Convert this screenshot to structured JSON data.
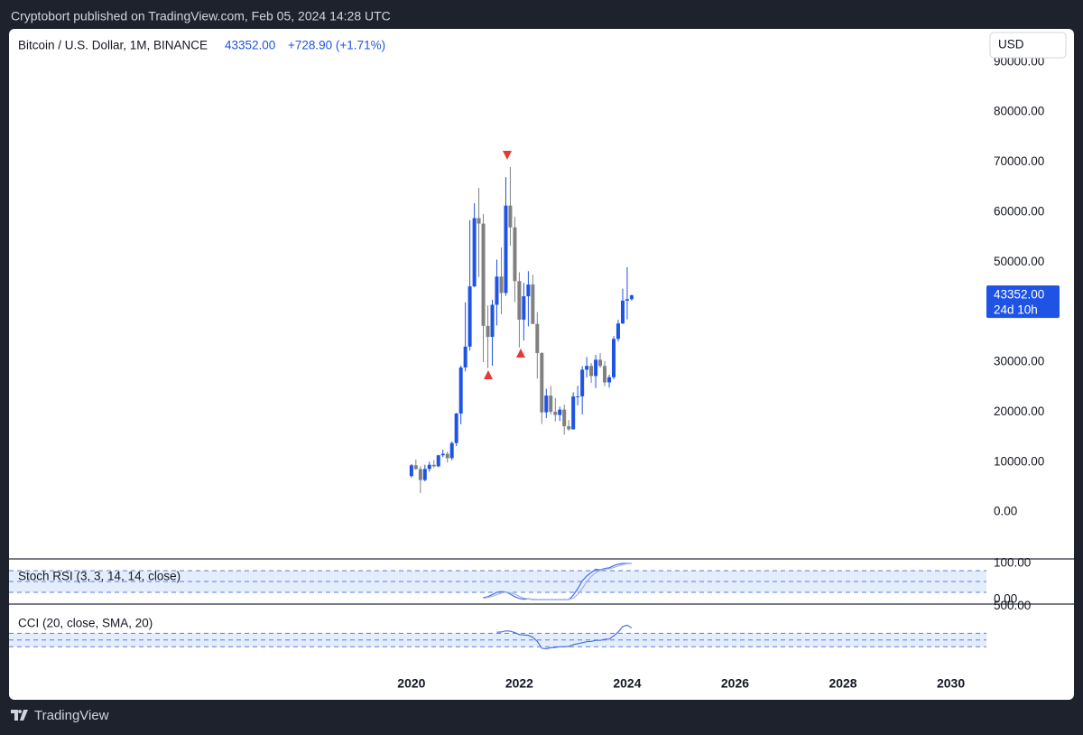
{
  "header": {
    "publisher": "Cryptobort published on TradingView.com, Feb 05, 2024 14:28 UTC"
  },
  "footer": {
    "brand": "TradingView"
  },
  "chart_data": [
    {
      "type": "candlestick",
      "title": "Bitcoin / U.S. Dollar, 1M, BINANCE",
      "change": "+728.90 (+1.71%)",
      "currency": "USD",
      "countdown": "24d 10h",
      "last_price": {
        "value": 43352,
        "label": "43352.00"
      },
      "up_color": "#1e53e5",
      "down_color": "#808080",
      "grid": false,
      "x": [
        2020,
        2020.083,
        2020.167,
        2020.25,
        2020.333,
        2020.417,
        2020.5,
        2020.583,
        2020.667,
        2020.75,
        2020.833,
        2020.917,
        2021,
        2021.083,
        2021.167,
        2021.25,
        2021.333,
        2021.417,
        2021.5,
        2021.583,
        2021.667,
        2021.75,
        2021.833,
        2021.917,
        2022,
        2022.083,
        2022.167,
        2022.25,
        2022.333,
        2022.417,
        2022.5,
        2022.583,
        2022.667,
        2022.75,
        2022.833,
        2022.917,
        2023,
        2023.083,
        2023.167,
        2023.25,
        2023.333,
        2023.417,
        2023.5,
        2023.583,
        2023.667,
        2023.75,
        2023.833,
        2023.917,
        2024,
        2024.083
      ],
      "open": [
        7195,
        9350,
        8600,
        6410,
        8620,
        9450,
        9140,
        11350,
        11650,
        10780,
        13800,
        19700,
        28920,
        33090,
        45140,
        58800,
        57700,
        37250,
        35040,
        41460,
        47100,
        43820,
        61300,
        56950,
        46200,
        38470,
        43160,
        45510,
        37630,
        31800,
        19940,
        23290,
        20050,
        19420,
        20490,
        17160,
        16540,
        23130,
        23140,
        28470,
        29230,
        27210,
        30470,
        29230,
        25940,
        26970,
        34640,
        37720,
        42280,
        42580
      ],
      "high": [
        9578,
        10500,
        9190,
        9460,
        10080,
        10380,
        11440,
        12470,
        12070,
        14100,
        19860,
        29300,
        41950,
        58350,
        61780,
        64850,
        59600,
        41330,
        42450,
        50500,
        52920,
        67000,
        69000,
        59040,
        47990,
        45820,
        48190,
        47440,
        40020,
        31990,
        24670,
        25210,
        22800,
        21090,
        21480,
        18390,
        23960,
        25250,
        29180,
        31000,
        29820,
        31430,
        31800,
        30230,
        27480,
        35200,
        38450,
        44700,
        48970,
        43500
      ],
      "low": [
        6871,
        8450,
        3782,
        6150,
        8100,
        8830,
        8980,
        10990,
        9880,
        10370,
        13200,
        17570,
        28130,
        32300,
        45000,
        47000,
        30000,
        28800,
        29280,
        37330,
        39600,
        43280,
        53260,
        42000,
        32920,
        34320,
        37150,
        37700,
        26700,
        17620,
        18780,
        19520,
        18120,
        18190,
        15480,
        16250,
        16500,
        21350,
        19550,
        26940,
        25810,
        24800,
        28860,
        25170,
        24900,
        26560,
        34100,
        37620,
        38550,
        42260
      ],
      "close": [
        9350,
        8600,
        6410,
        8620,
        9450,
        9140,
        11350,
        11650,
        10780,
        13800,
        19700,
        28920,
        33090,
        45140,
        58800,
        57700,
        37250,
        35040,
        41460,
        47100,
        43820,
        61300,
        56950,
        46200,
        38470,
        43160,
        45510,
        37630,
        31800,
        19940,
        23290,
        20050,
        19420,
        20490,
        17160,
        16540,
        23130,
        23140,
        28470,
        29230,
        27210,
        30470,
        29230,
        25940,
        26970,
        34640,
        37720,
        42280,
        42580,
        43352
      ],
      "xlim": [
        2012.54,
        2030.66
      ],
      "xticks": [
        2020,
        2022,
        2024,
        2026,
        2028,
        2030
      ],
      "ylim": [
        -9200,
        96650
      ],
      "yticks": [
        {
          "value": 0,
          "label": "0.00"
        },
        {
          "value": 10000,
          "label": "10000.00"
        },
        {
          "value": 20000,
          "label": "20000.00"
        },
        {
          "value": 30000,
          "label": "30000.00"
        },
        {
          "value": 40000,
          "label": "40000.00"
        },
        {
          "value": 50000,
          "label": "50000.00"
        },
        {
          "value": 60000,
          "label": "60000.00"
        },
        {
          "value": 70000,
          "label": "70000.00"
        },
        {
          "value": 80000,
          "label": "80000.00"
        },
        {
          "value": 90000,
          "label": "90000.00"
        }
      ]
    },
    {
      "type": "line",
      "title": "Stoch RSI (3, 3, 14, 14, close)",
      "ylim": [
        -10,
        110
      ],
      "yticks": [
        {
          "value": 100,
          "label": "100.00"
        },
        {
          "value": 0,
          "label": "0.00"
        }
      ],
      "levels": [
        80,
        50,
        20
      ],
      "band_color": "#e3edfb",
      "series": [
        {
          "color": "#4a6fdc",
          "values": [
            null,
            null,
            null,
            null,
            null,
            null,
            null,
            null,
            null,
            null,
            null,
            null,
            null,
            null,
            null,
            null,
            5,
            8,
            14,
            20,
            22,
            21,
            15,
            8,
            3,
            1,
            2,
            0,
            0,
            0,
            0,
            0,
            0,
            0,
            0,
            0,
            12,
            30,
            52,
            65,
            75,
            84,
            82,
            86,
            88,
            94,
            98,
            100,
            100,
            100
          ]
        },
        {
          "color": "#9fb3e6",
          "values": [
            null,
            null,
            null,
            null,
            null,
            null,
            null,
            null,
            null,
            null,
            null,
            null,
            null,
            null,
            null,
            null,
            3,
            6,
            9,
            14,
            18,
            21,
            19,
            15,
            9,
            4,
            2,
            1,
            0,
            0,
            0,
            0,
            0,
            0,
            0,
            0,
            4,
            14,
            31,
            49,
            64,
            75,
            80,
            84,
            85,
            89,
            93,
            97,
            99,
            100
          ]
        }
      ]
    },
    {
      "type": "line",
      "title": "CCI (20, close, SMA, 20)",
      "ylim": [
        -150,
        520
      ],
      "yticks": [
        {
          "value": 500,
          "label": "500.00"
        }
      ],
      "levels": [
        100,
        0,
        -100
      ],
      "band_color": "#e3edfb",
      "series": [
        {
          "color": "#4a6fdc",
          "values": [
            null,
            null,
            null,
            null,
            null,
            null,
            null,
            null,
            null,
            null,
            null,
            null,
            null,
            null,
            null,
            null,
            null,
            null,
            null,
            115,
            120,
            135,
            130,
            110,
            80,
            75,
            70,
            40,
            -20,
            -120,
            -130,
            -115,
            -110,
            -100,
            -100,
            -95,
            -70,
            -55,
            -40,
            -25,
            -20,
            -5,
            -5,
            10,
            15,
            60,
            120,
            200,
            220,
            180
          ]
        }
      ]
    }
  ]
}
